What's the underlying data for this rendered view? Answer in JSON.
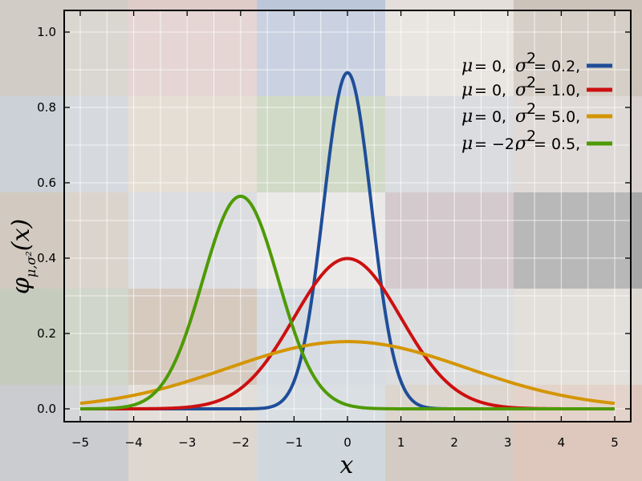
{
  "chart_data": {
    "type": "line",
    "xlabel": "x",
    "ylabel_main": "φ",
    "ylabel_sub": "μ,σ²",
    "ylabel_rest": "(x)",
    "xlim": [
      -5,
      5
    ],
    "ylim": [
      0,
      1.0
    ],
    "x_ticks": [
      -5,
      -4,
      -3,
      -2,
      -1,
      0,
      1,
      2,
      3,
      4,
      5
    ],
    "x_tick_labels": [
      "−5",
      "−4",
      "−3",
      "−2",
      "−1",
      "0",
      "1",
      "2",
      "3",
      "4",
      "5"
    ],
    "y_ticks": [
      0,
      0.2,
      0.4,
      0.6,
      0.8,
      1.0
    ],
    "y_tick_labels": [
      "0.0",
      "0.2",
      "0.4",
      "0.6",
      "0.8",
      "1.0"
    ],
    "grid": true,
    "legend_position": "top-right",
    "series": [
      {
        "mu_text": "μ",
        "mu_value": "= 0,",
        "sigma_text": "σ",
        "sigma_value": "= 0.2,",
        "mu": 0,
        "variance": 0.2,
        "color": "#1f4e99"
      },
      {
        "mu_text": "μ",
        "mu_value": "= 0,",
        "sigma_text": "σ",
        "sigma_value": "= 1.0,",
        "mu": 0,
        "variance": 1.0,
        "color": "#cc1010"
      },
      {
        "mu_text": "μ",
        "mu_value": "= 0,",
        "sigma_text": "σ",
        "sigma_value": "= 5.0,",
        "mu": 0,
        "variance": 5.0,
        "color": "#d49500"
      },
      {
        "mu_text": "μ",
        "mu_value": "= −2,",
        "sigma_text": "σ",
        "sigma_value": "= 0.5,",
        "mu": -2,
        "variance": 0.5,
        "color": "#4e9a06"
      }
    ]
  },
  "background_tiles": [
    "#9a8f7f",
    "#b98f86",
    "#6d83ad",
    "#c3b9ad",
    "#8f7a66",
    "#8f9aa8",
    "#b8a48a",
    "#7f9a63",
    "#9aa0a8",
    "#a89a94",
    "#9c8a73",
    "#9ea3aa",
    "#c9c4c2",
    "#8a6e77",
    "#3c3c3c",
    "#7f8f6d",
    "#8f6e4f",
    "#8fa0ad",
    "#a0a2a6",
    "#b4a99c",
    "#8a8f96",
    "#b3a795",
    "#9aa8b3",
    "#9f8e7d",
    "#b7866e"
  ]
}
